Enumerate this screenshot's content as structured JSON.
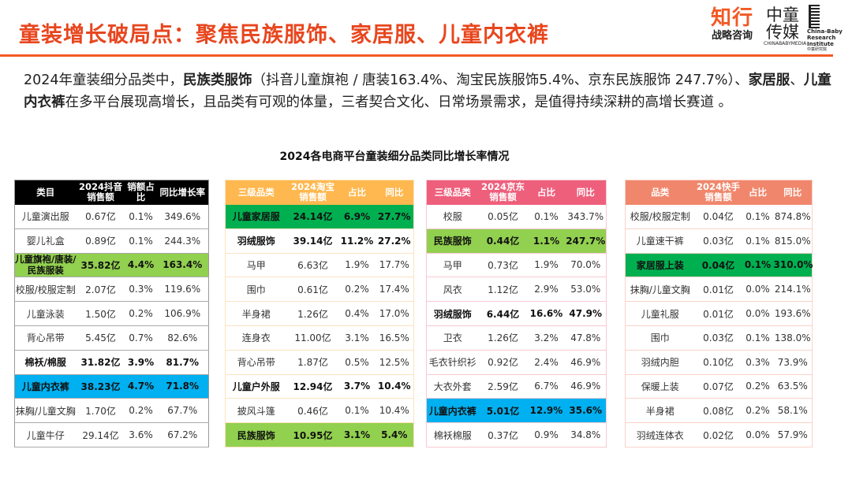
{
  "title": "童装增长破局点：聚焦民族服饰、家居服、儿童内衣裤",
  "logos": {
    "zhixing_main": "知行",
    "zhixing_sub": "战略咨询",
    "zhongtong_main_1": "中童",
    "zhongtong_main_2": "传媒",
    "zhongtong_en": "CHINABABYMEDIA",
    "institute_en": "China-Baby Research Institute",
    "institute_cn": "中童研究院"
  },
  "paragraph": [
    {
      "text": "2024年童装细分品类中，",
      "bold": false
    },
    {
      "text": "民族类服饰",
      "bold": true
    },
    {
      "text": "（抖音儿童旗袍 / 唐装163.4%、淘宝民族服饰5.4%、京东民族服饰 247.7%）、",
      "bold": false
    },
    {
      "text": "家居服",
      "bold": true
    },
    {
      "text": "、",
      "bold": false
    },
    {
      "text": "儿童内衣裤",
      "bold": true
    },
    {
      "text": "在多平台展现高增长，且品类有可观的体量，三者契合文化、日常场景需求，是值得持续深耕的高增长赛道 。",
      "bold": false
    }
  ],
  "chart_title": "2024各电商平台童装细分品类同比增长率情况",
  "colors": {
    "title": "#e8461e",
    "highlight_green": "#00b050",
    "highlight_lime": "#92d050",
    "highlight_blue": "#00b0f0"
  },
  "chart_data": [
    {
      "type": "table",
      "platform": "抖音",
      "headers": [
        "类目",
        "2024抖音销售额",
        "销额占比",
        "同比增长率"
      ],
      "rows": [
        {
          "style": "",
          "cells": [
            "儿童演出服",
            "0.67亿",
            "0.1%",
            "349.6%"
          ]
        },
        {
          "style": "",
          "cells": [
            "婴儿礼盒",
            "0.89亿",
            "0.1%",
            "244.3%"
          ]
        },
        {
          "style": "lime",
          "cells": [
            "儿童旗袍/唐装/民族服装",
            "35.82亿",
            "4.4%",
            "163.4%"
          ]
        },
        {
          "style": "",
          "cells": [
            "校服/校服定制",
            "2.07亿",
            "0.3%",
            "119.6%"
          ]
        },
        {
          "style": "",
          "cells": [
            "儿童泳装",
            "1.50亿",
            "0.2%",
            "106.9%"
          ]
        },
        {
          "style": "",
          "cells": [
            "背心吊带",
            "5.45亿",
            "0.7%",
            "82.6%"
          ]
        },
        {
          "style": "bold",
          "cells": [
            "棉袄/棉服",
            "31.82亿",
            "3.9%",
            "81.7%"
          ]
        },
        {
          "style": "blue",
          "cells": [
            "儿童内衣裤",
            "38.23亿",
            "4.7%",
            "71.8%"
          ]
        },
        {
          "style": "",
          "cells": [
            "抹胸/儿童文胸",
            "1.70亿",
            "0.2%",
            "67.7%"
          ]
        },
        {
          "style": "",
          "cells": [
            "儿童牛仔",
            "29.14亿",
            "3.6%",
            "67.2%"
          ]
        }
      ]
    },
    {
      "type": "table",
      "platform": "淘宝",
      "headers": [
        "三级品类",
        "2024淘宝销售额",
        "占比",
        "同比"
      ],
      "rows": [
        {
          "style": "green",
          "cells": [
            "儿童家居服",
            "24.14亿",
            "6.9%",
            "27.7%"
          ]
        },
        {
          "style": "bold",
          "cells": [
            "羽绒服饰",
            "39.14亿",
            "11.2%",
            "27.2%"
          ]
        },
        {
          "style": "",
          "cells": [
            "马甲",
            "6.63亿",
            "1.9%",
            "17.7%"
          ]
        },
        {
          "style": "",
          "cells": [
            "围巾",
            "0.61亿",
            "0.2%",
            "17.4%"
          ]
        },
        {
          "style": "",
          "cells": [
            "半身裙",
            "1.26亿",
            "0.4%",
            "17.0%"
          ]
        },
        {
          "style": "",
          "cells": [
            "连身衣",
            "11.00亿",
            "3.1%",
            "16.5%"
          ]
        },
        {
          "style": "",
          "cells": [
            "背心吊带",
            "1.87亿",
            "0.5%",
            "12.5%"
          ]
        },
        {
          "style": "bold",
          "cells": [
            "儿童户外服",
            "12.94亿",
            "3.7%",
            "10.4%"
          ]
        },
        {
          "style": "",
          "cells": [
            "披风斗篷",
            "0.46亿",
            "0.1%",
            "10.4%"
          ]
        },
        {
          "style": "lime",
          "cells": [
            "民族服饰",
            "10.95亿",
            "3.1%",
            "5.4%"
          ]
        }
      ]
    },
    {
      "type": "table",
      "platform": "京东",
      "headers": [
        "三级品类",
        "2024京东销售额",
        "占比",
        "同比"
      ],
      "rows": [
        {
          "style": "",
          "cells": [
            "校服",
            "0.05亿",
            "0.1%",
            "343.7%"
          ]
        },
        {
          "style": "lime",
          "cells": [
            "民族服饰",
            "0.44亿",
            "1.1%",
            "247.7%"
          ]
        },
        {
          "style": "",
          "cells": [
            "马甲",
            "0.73亿",
            "1.9%",
            "70.0%"
          ]
        },
        {
          "style": "",
          "cells": [
            "风衣",
            "1.12亿",
            "2.9%",
            "53.0%"
          ]
        },
        {
          "style": "bold",
          "cells": [
            "羽绒服饰",
            "6.44亿",
            "16.6%",
            "47.9%"
          ]
        },
        {
          "style": "",
          "cells": [
            "卫衣",
            "1.26亿",
            "3.2%",
            "47.8%"
          ]
        },
        {
          "style": "",
          "cells": [
            "毛衣针织衫",
            "0.92亿",
            "2.4%",
            "46.9%"
          ]
        },
        {
          "style": "",
          "cells": [
            "大衣外套",
            "2.59亿",
            "6.7%",
            "46.9%"
          ]
        },
        {
          "style": "blue",
          "cells": [
            "儿童内衣裤",
            "5.01亿",
            "12.9%",
            "35.6%"
          ]
        },
        {
          "style": "",
          "cells": [
            "棉袄棉服",
            "0.37亿",
            "0.9%",
            "34.8%"
          ]
        }
      ]
    },
    {
      "type": "table",
      "platform": "快手",
      "headers": [
        "品类",
        "2024快手销售额",
        "占比",
        "同比"
      ],
      "rows": [
        {
          "style": "",
          "cells": [
            "校服/校服定制",
            "0.04亿",
            "0.1%",
            "874.8%"
          ]
        },
        {
          "style": "",
          "cells": [
            "儿童速干裤",
            "0.03亿",
            "0.1%",
            "815.0%"
          ]
        },
        {
          "style": "green",
          "cells": [
            "家居服上装",
            "0.04亿",
            "0.1%",
            "310.0%"
          ]
        },
        {
          "style": "",
          "cells": [
            "抹胸/儿童文胸",
            "0.01亿",
            "0.0%",
            "214.1%"
          ]
        },
        {
          "style": "",
          "cells": [
            "儿童礼服",
            "0.01亿",
            "0.0%",
            "193.6%"
          ]
        },
        {
          "style": "",
          "cells": [
            "围巾",
            "0.03亿",
            "0.1%",
            "138.0%"
          ]
        },
        {
          "style": "",
          "cells": [
            "羽绒内胆",
            "0.10亿",
            "0.3%",
            "73.9%"
          ]
        },
        {
          "style": "",
          "cells": [
            "保暖上装",
            "0.07亿",
            "0.2%",
            "63.5%"
          ]
        },
        {
          "style": "",
          "cells": [
            "半身裙",
            "0.08亿",
            "0.2%",
            "58.1%"
          ]
        },
        {
          "style": "",
          "cells": [
            "羽绒连体衣",
            "0.02亿",
            "0.0%",
            "57.9%"
          ]
        }
      ]
    }
  ]
}
